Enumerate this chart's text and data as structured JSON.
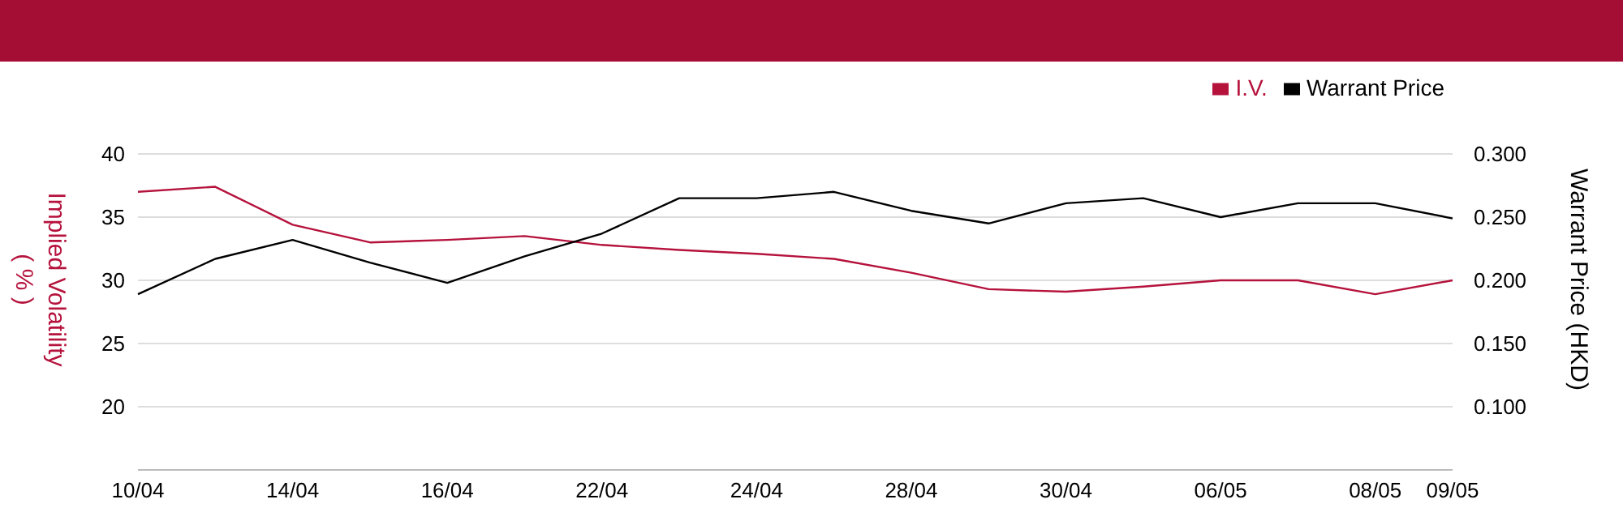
{
  "chart_data": {
    "type": "line",
    "ylabel": "Implied Volatility\n( % )",
    "y2label": "Warrant Price (HKD)",
    "categories": [
      "10/04",
      null,
      "14/04",
      null,
      "16/04",
      null,
      "22/04",
      null,
      "24/04",
      null,
      "28/04",
      null,
      "30/04",
      null,
      "06/05",
      null,
      "08/05",
      "09/05"
    ],
    "series": [
      {
        "name": "I.V.",
        "color": "#b5123c",
        "values": [
          37.0,
          37.4,
          34.4,
          33.0,
          33.2,
          33.5,
          32.8,
          32.4,
          32.1,
          31.7,
          30.6,
          29.3,
          29.1,
          29.5,
          30.0,
          30.0,
          28.9,
          30.0
        ]
      },
      {
        "name": "Warrant Price",
        "color": "#000000",
        "axis": "y2",
        "values": [
          0.189,
          0.217,
          0.232,
          0.214,
          0.198,
          0.219,
          0.237,
          0.265,
          0.265,
          0.27,
          0.255,
          0.245,
          0.261,
          0.265,
          0.25,
          0.261,
          0.261,
          0.249
        ]
      }
    ],
    "ylim": [
      15,
      40
    ],
    "yticks": [
      20,
      25,
      30,
      35,
      40
    ],
    "y2lim": [
      0.05,
      0.3
    ],
    "y2ticks": [
      {
        "value": 0.1,
        "label": "0.100"
      },
      {
        "value": 0.15,
        "label": "0.150"
      },
      {
        "value": 0.2,
        "label": "0.200"
      },
      {
        "value": 0.25,
        "label": "0.250"
      },
      {
        "value": 0.3,
        "label": "0.300"
      }
    ],
    "grid": "y",
    "legend": "top right",
    "marker": "none",
    "line_style": "solid"
  }
}
